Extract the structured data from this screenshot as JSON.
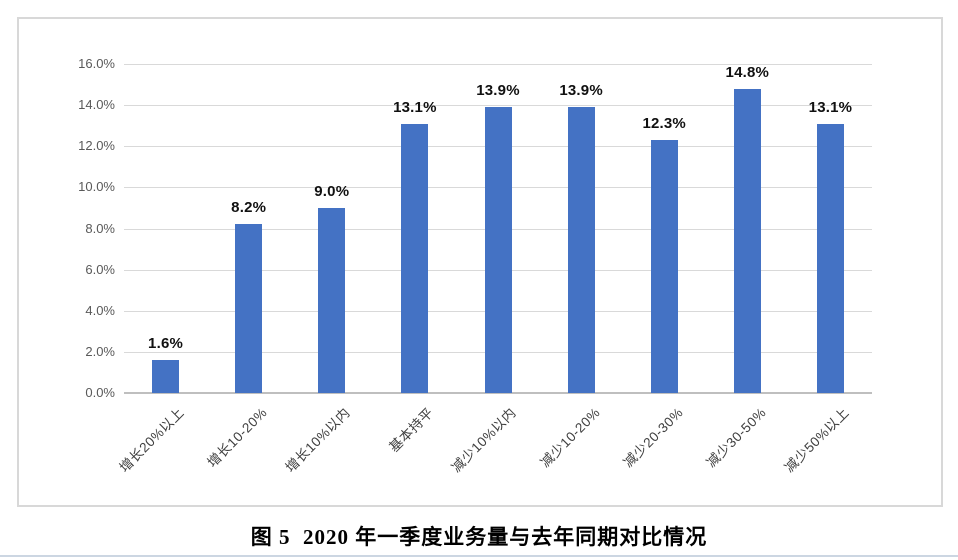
{
  "chart_data": {
    "type": "bar",
    "categories": [
      "增长20%以上",
      "增长10-20%",
      "增长10%以内",
      "基本持平",
      "减少10%以内",
      "减少10-20%",
      "减少20-30%",
      "减少30-50%",
      "减少50%以上"
    ],
    "values": [
      1.6,
      8.2,
      9.0,
      13.1,
      13.9,
      13.9,
      12.3,
      14.8,
      13.1
    ],
    "value_labels": [
      "1.6%",
      "8.2%",
      "9.0%",
      "13.1%",
      "13.9%",
      "13.9%",
      "12.3%",
      "14.8%",
      "13.1%"
    ],
    "title": "",
    "xlabel": "",
    "ylabel": "",
    "ylim": [
      0,
      16
    ],
    "ytick_step": 2,
    "ytick_labels": [
      "0.0%",
      "2.0%",
      "4.0%",
      "6.0%",
      "8.0%",
      "10.0%",
      "12.0%",
      "14.0%",
      "16.0%"
    ],
    "grid": true,
    "legend_position": "none",
    "bar_color": "#4472C4"
  },
  "caption": {
    "text": "图 5  2020 年一季度业务量与去年同期对比情况"
  },
  "colors": {
    "bar": "#4472C4",
    "gridline": "#D9D9D9",
    "zero_line": "#BFBFBF",
    "tick_label": "#595959",
    "category_label": "#3F3F3F",
    "data_label": "#111111",
    "chart_border": "#D8D8D8",
    "divider": "#CCD6E2"
  }
}
